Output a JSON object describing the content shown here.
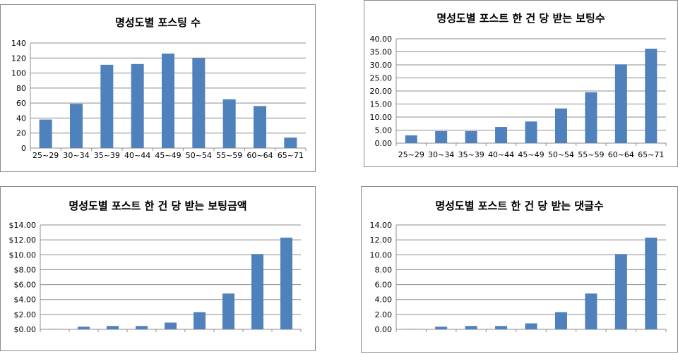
{
  "chart_data": [
    {
      "type": "bar",
      "title": "명성도별 포스팅 수",
      "categories": [
        "25~29",
        "30~34",
        "35~39",
        "40~44",
        "45~49",
        "50~54",
        "55~59",
        "60~64",
        "65~71"
      ],
      "values": [
        38,
        59,
        111,
        112,
        126,
        120,
        65,
        56,
        14
      ],
      "ylim": [
        0,
        140
      ],
      "yticks": [
        "0",
        "20",
        "40",
        "60",
        "80",
        "100",
        "120",
        "140"
      ],
      "grid": true,
      "color": "#4f81bd"
    },
    {
      "type": "bar",
      "title": "명성도별 포스트 한 건 당 받는 보팅수",
      "categories": [
        "25~29",
        "30~34",
        "35~39",
        "40~44",
        "45~49",
        "50~54",
        "55~59",
        "60~64",
        "65~71"
      ],
      "values": [
        3.0,
        4.6,
        4.6,
        6.2,
        8.3,
        13.3,
        19.5,
        30.2,
        36.2
      ],
      "ylim": [
        0,
        40
      ],
      "yticks": [
        "0.00",
        "5.00",
        "10.00",
        "15.00",
        "20.00",
        "25.00",
        "30.00",
        "35.00",
        "40.00"
      ],
      "grid": true,
      "color": "#4f81bd"
    },
    {
      "type": "bar",
      "title": "명성도별 포스트 한 건 당 받는 보팅금액",
      "categories": [
        "25~29",
        "30~34",
        "35~39",
        "40~44",
        "45~49",
        "50~54",
        "55~59",
        "60~64",
        "65~71"
      ],
      "values": [
        0.05,
        0.35,
        0.45,
        0.45,
        0.9,
        2.3,
        4.8,
        10.1,
        12.3
      ],
      "ylim": [
        0,
        14
      ],
      "yticks": [
        "$0.00",
        "$2.00",
        "$4.00",
        "$6.00",
        "$8.00",
        "$10.00",
        "$12.00",
        "$14.00"
      ],
      "grid": true,
      "color": "#4f81bd"
    },
    {
      "type": "bar",
      "title": "명성도별 포스트 한 건 당 받는 댓글수",
      "categories": [
        "25~29",
        "30~34",
        "35~39",
        "40~44",
        "45~49",
        "50~54",
        "55~59",
        "60~64",
        "65~71"
      ],
      "values": [
        0.05,
        0.35,
        0.45,
        0.45,
        0.8,
        2.3,
        4.8,
        10.1,
        12.3
      ],
      "ylim": [
        0,
        14
      ],
      "yticks": [
        "0.00",
        "2.00",
        "4.00",
        "6.00",
        "8.00",
        "10.00",
        "12.00",
        "14.00"
      ],
      "grid": true,
      "color": "#4f81bd"
    }
  ]
}
